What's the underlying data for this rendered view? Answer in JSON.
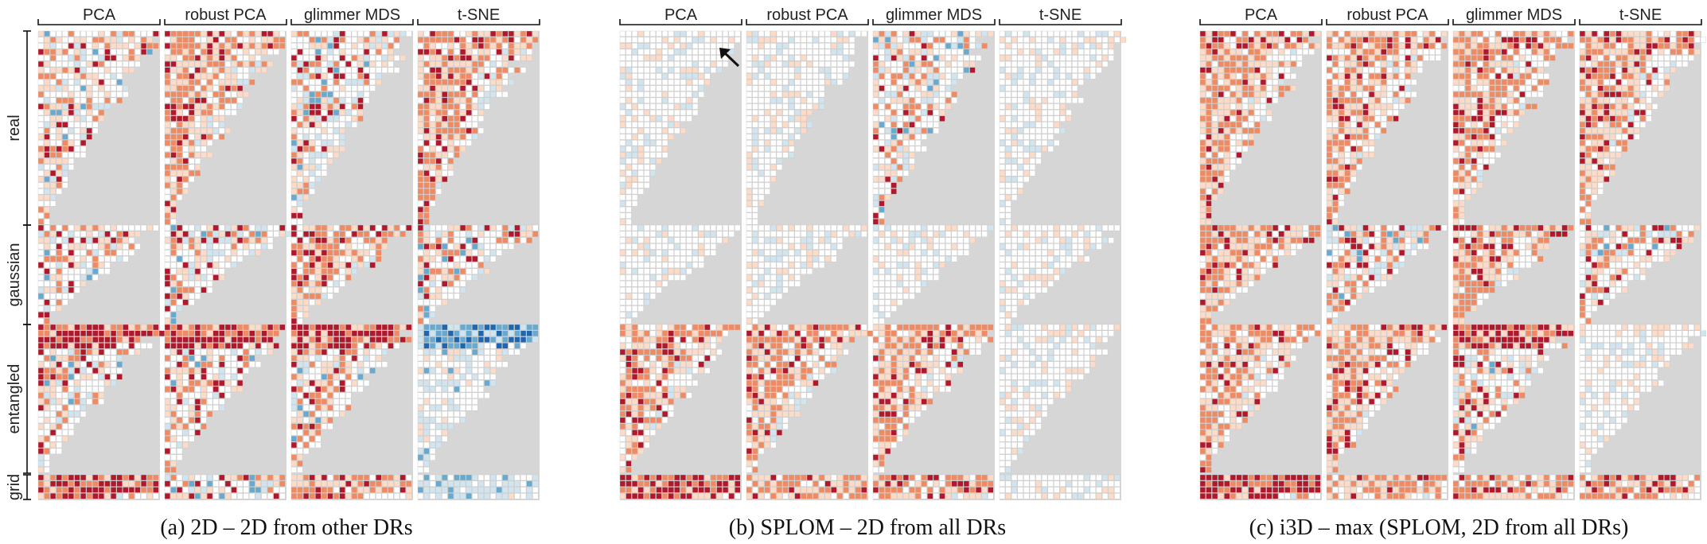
{
  "panels": [
    {
      "label": "(a)",
      "caption": "2D – 2D from other DRs"
    },
    {
      "label": "(b)",
      "caption": "SPLOM – 2D from all DRs"
    },
    {
      "label": "(c)",
      "caption": "i3D – max (SPLOM, 2D from all DRs)"
    }
  ],
  "methods": [
    "PCA",
    "robust PCA",
    "glimmer MDS",
    "t-SNE"
  ],
  "dataset_groups": [
    "real",
    "gaussian",
    "entangled",
    "grid"
  ],
  "colors": {
    "positive_strong": "#b2182b",
    "positive_mid": "#ef8a62",
    "positive_light": "#fddbc7",
    "neutral": "#ffffff",
    "negative_light": "#d1e5f0",
    "negative_mid": "#67a9cf",
    "negative_strong": "#2166ac",
    "background": "#d6d6d6",
    "grid_line": "#c8c8c8"
  },
  "chart_data": {
    "type": "heatmap",
    "panels": [
      "(a)",
      "(b)",
      "(c)"
    ],
    "columns": [
      "PCA",
      "robust PCA",
      "glimmer MDS",
      "t-SNE"
    ],
    "row_groups": [
      "real",
      "gaussian",
      "entangled",
      "grid"
    ],
    "color_scale": "diverging blue–white–red (negative to positive difference)",
    "group_signs": {
      "(a)": {
        "PCA": {
          "real": "mixed, mostly positive",
          "gaussian": "mixed",
          "entangled": "strongly positive",
          "grid": "strongly positive"
        },
        "robust PCA": {
          "real": "mostly positive",
          "gaussian": "mixed",
          "entangled": "strongly positive",
          "grid": "mixed"
        },
        "glimmer MDS": {
          "real": "mixed",
          "gaussian": "positive",
          "entangled": "strongly positive",
          "grid": "positive"
        },
        "t-SNE": {
          "real": "mostly positive",
          "gaussian": "mixed",
          "entangled": "strongly negative",
          "grid": "negative"
        }
      },
      "(b)": {
        "PCA": {
          "real": "mostly near zero, some negative",
          "gaussian": "mostly near zero",
          "entangled": "positive",
          "grid": "strongly positive"
        },
        "robust PCA": {
          "real": "near zero",
          "gaussian": "near zero",
          "entangled": "positive",
          "grid": "positive"
        },
        "glimmer MDS": {
          "real": "mixed",
          "gaussian": "near zero",
          "entangled": "positive",
          "grid": "positive"
        },
        "t-SNE": {
          "real": "near zero",
          "gaussian": "near zero",
          "entangled": "near zero",
          "grid": "near zero"
        }
      },
      "(c)": {
        "PCA": {
          "real": "mostly positive",
          "gaussian": "positive",
          "entangled": "positive",
          "grid": "strongly positive"
        },
        "robust PCA": {
          "real": "positive",
          "gaussian": "mixed",
          "entangled": "positive",
          "grid": "positive"
        },
        "glimmer MDS": {
          "real": "positive",
          "gaussian": "positive",
          "entangled": "strongly positive",
          "grid": "positive"
        },
        "t-SNE": {
          "real": "positive",
          "gaussian": "mixed",
          "entangled": "near zero",
          "grid": "positive"
        }
      }
    }
  }
}
